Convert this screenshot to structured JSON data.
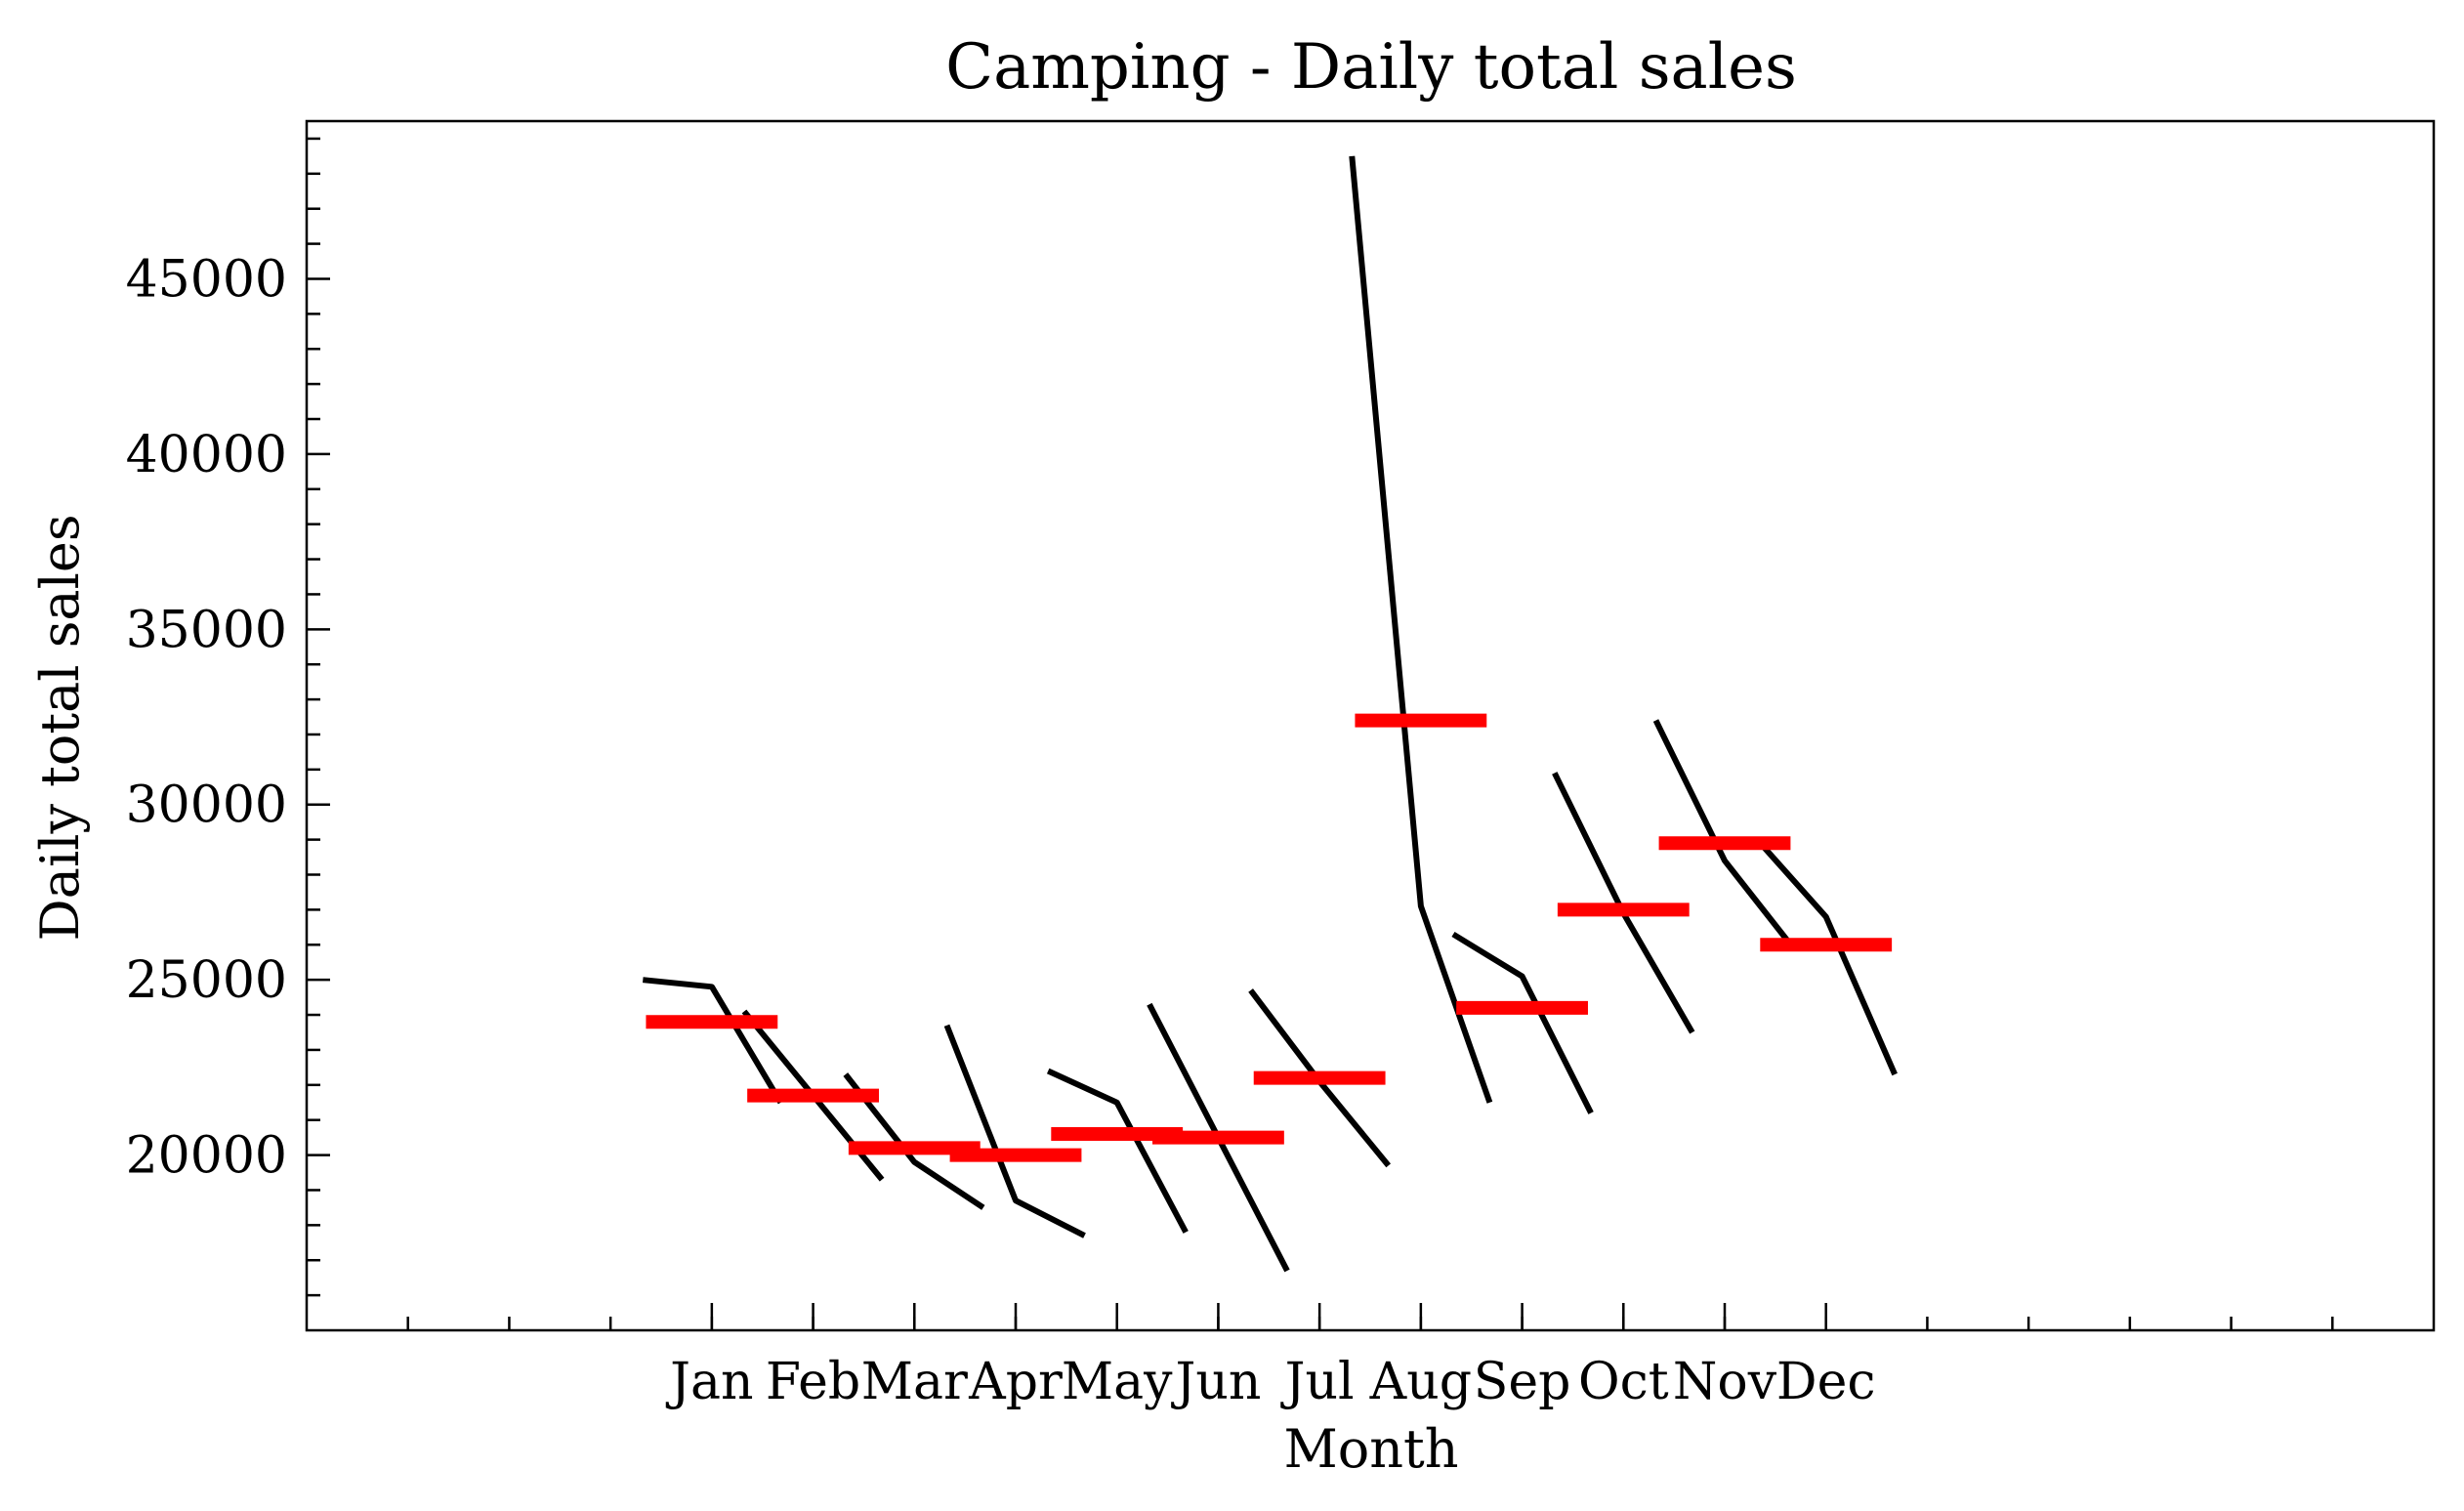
{
  "chart_data": {
    "type": "line",
    "title": "Camping - Daily total sales",
    "xlabel": "Month",
    "ylabel": "Daily total sales",
    "categories": [
      "Jan",
      "Feb",
      "Mar",
      "Apr",
      "May",
      "Jun",
      "Jul",
      "Aug",
      "Sep",
      "Oct",
      "Nov",
      "Dec"
    ],
    "ylim": [
      15000,
      49500
    ],
    "yticks": [
      20000,
      25000,
      30000,
      35000,
      40000,
      45000
    ],
    "grid": false,
    "series": [
      {
        "color": "#000000",
        "values": [
          [
            25000,
            24800,
            21500
          ],
          [
            24100,
            21700,
            19300
          ],
          [
            22300,
            19800,
            18500
          ],
          [
            23700,
            18700,
            17700
          ],
          [
            22400,
            21500,
            17800
          ],
          [
            24300,
            20500,
            16700
          ],
          [
            24700,
            22100,
            19700
          ],
          [
            48500,
            27100,
            21500
          ],
          [
            26300,
            25100,
            21200
          ],
          [
            30900,
            26900,
            23500
          ],
          [
            32400,
            28400,
            25900
          ],
          [
            29000,
            26800,
            22300
          ]
        ]
      },
      {
        "color": "#ff0000",
        "values": [
          23800,
          21700,
          20200,
          20000,
          20600,
          20500,
          22200,
          32400,
          24200,
          27000,
          28900,
          26000
        ]
      }
    ]
  }
}
